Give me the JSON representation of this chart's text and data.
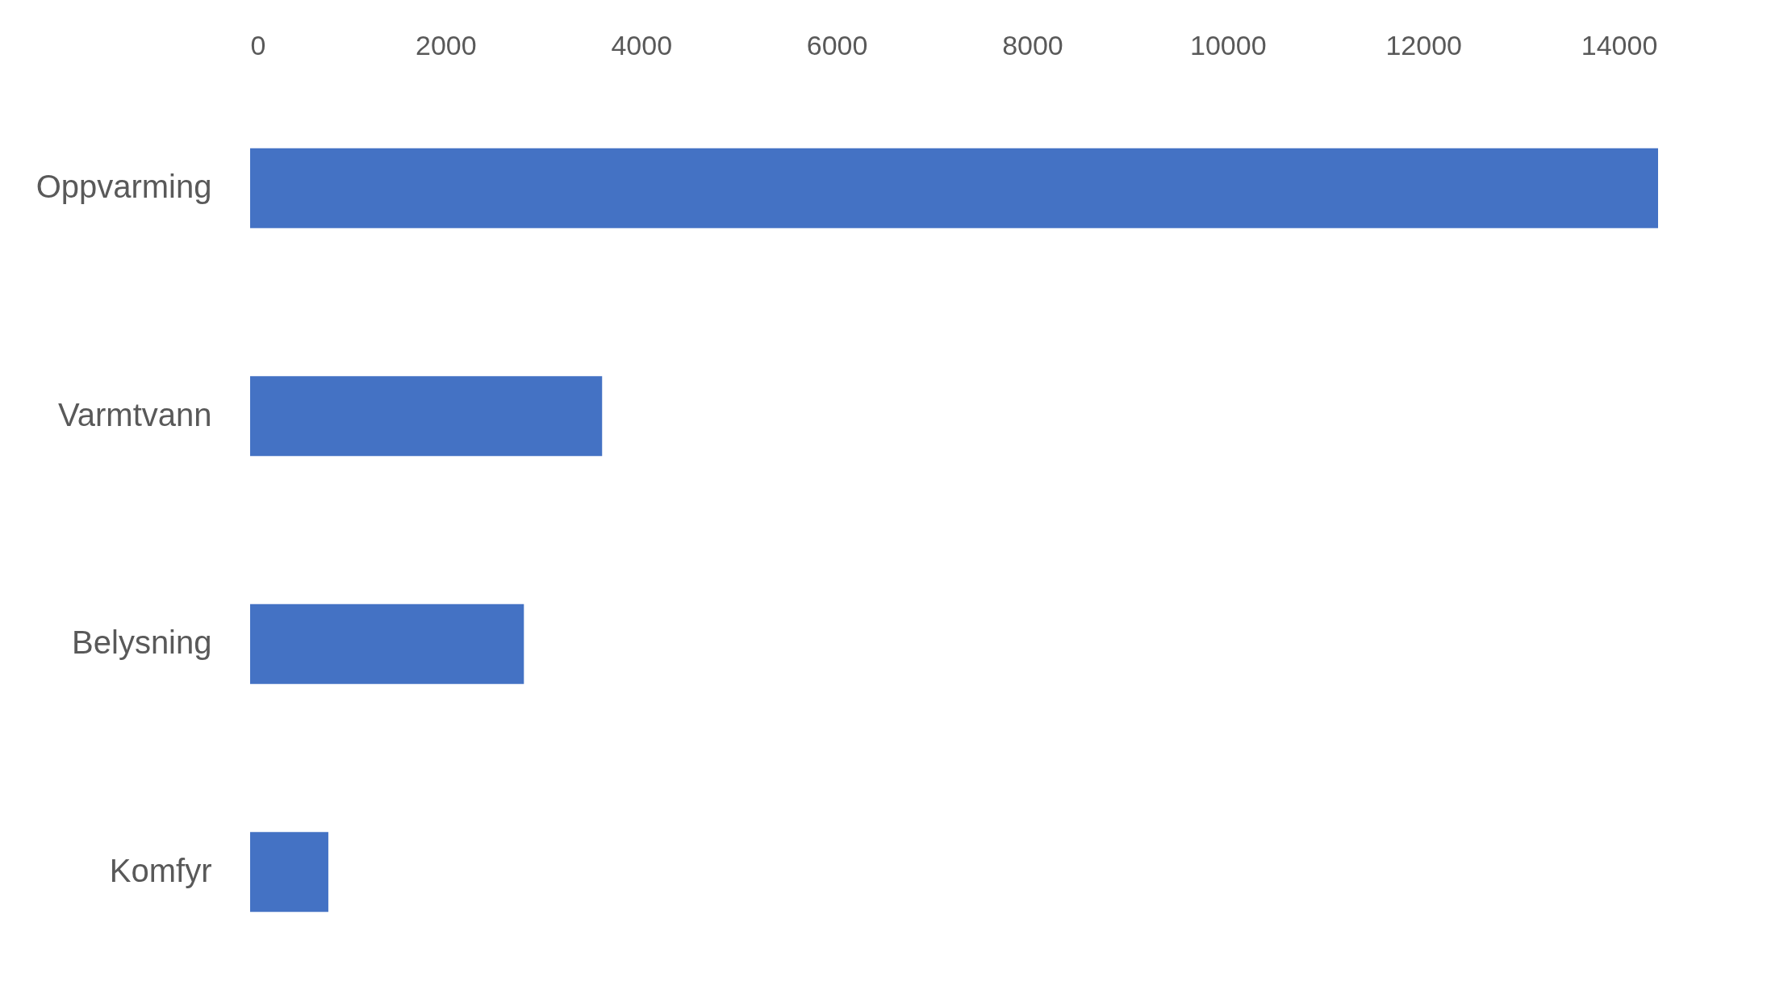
{
  "chart_data": {
    "type": "bar",
    "orientation": "horizontal",
    "categories": [
      "Oppvarming",
      "Varmtvann",
      "Belysning",
      "Komfyr"
    ],
    "values": [
      14400,
      3600,
      2800,
      800
    ],
    "color": "#4472c4",
    "xlim": [
      0,
      14400
    ],
    "xticks": [
      0,
      2000,
      4000,
      6000,
      8000,
      10000,
      12000,
      14000
    ],
    "grid": false
  }
}
